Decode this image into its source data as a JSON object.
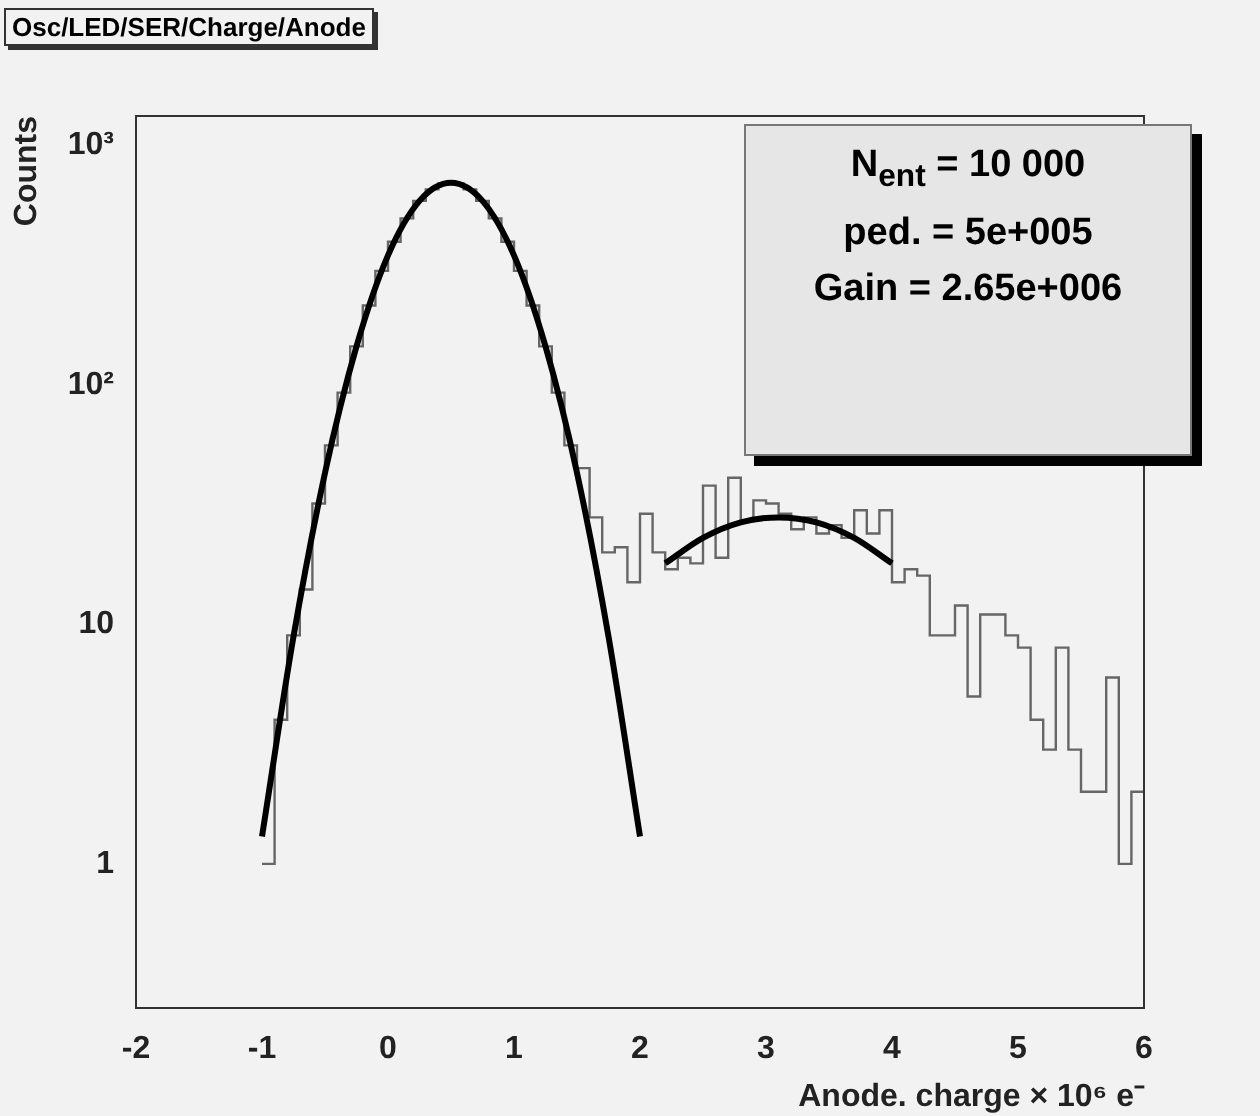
{
  "chart_data": {
    "type": "histogram",
    "title": "Osc/LED/SER/Charge/Anode",
    "xlabel": "Anode. charge × 10⁶ e⁻",
    "ylabel": "Counts",
    "annotations": [
      "N$_{ent}$ = 10 000",
      "ped. = 5e+005",
      "Gain = 2.65e+006"
    ],
    "log": "y",
    "grid": false,
    "legend": false,
    "xlim": [
      -2,
      6
    ],
    "xticks": [
      -2,
      -1,
      0,
      1,
      2,
      3,
      4,
      5,
      6
    ],
    "ylim": [
      0.25,
      1330
    ],
    "yticks": [
      1,
      10,
      {
        "value": 100,
        "label": "10²"
      },
      {
        "value": 1000,
        "label": "10³"
      }
    ],
    "series": [
      {
        "type": "histogram",
        "color": "#666666",
        "bins": [
          -1,
          -0.9,
          -0.8,
          -0.7,
          -0.6,
          -0.5,
          -0.4,
          -0.3,
          -0.2,
          -0.1,
          0,
          0.1,
          0.2,
          0.3,
          0.4,
          0.5,
          0.6,
          0.7,
          0.8,
          0.9,
          1,
          1.1,
          1.2,
          1.3,
          1.4,
          1.5,
          1.6,
          1.7,
          1.8,
          1.9,
          2,
          2.1,
          2.2,
          2.3,
          2.4,
          2.5,
          2.6,
          2.7,
          2.8,
          2.9,
          3,
          3.1,
          3.2,
          3.3,
          3.4,
          3.5,
          3.6,
          3.7,
          3.8,
          3.9,
          4,
          4.1,
          4.2,
          4.3,
          4.4,
          4.5,
          4.6,
          4.7,
          4.8,
          4.9,
          5,
          5.1,
          5.2,
          5.3,
          5.4,
          5.5,
          5.6,
          5.7,
          5.8,
          5.9,
          6
        ],
        "values": [
          1,
          4,
          9,
          14,
          32,
          56,
          93,
          145,
          215,
          300,
          397,
          497,
          588,
          657,
          695,
          695,
          657,
          588,
          497,
          397,
          300,
          215,
          145,
          93,
          56,
          45,
          28,
          20,
          21,
          15,
          29,
          20,
          17,
          19,
          18,
          38,
          19,
          41,
          27,
          33,
          32,
          29,
          25,
          28,
          24,
          26,
          23,
          30,
          24,
          30,
          15,
          17,
          16,
          9,
          9,
          12,
          5,
          11,
          11,
          9,
          8,
          4,
          3,
          8,
          3,
          2,
          2,
          6,
          1,
          2
        ]
      },
      {
        "type": "line",
        "color": "#000000",
        "x": [
          -1,
          -0.75,
          -0.5,
          -0.25,
          0,
          0.25,
          0.5,
          0.75,
          1,
          1.25,
          1.5,
          1.75,
          2
        ],
        "values": [
          1.3,
          8.9,
          43,
          145,
          348,
          588,
          700,
          588,
          348,
          145,
          43,
          8.9,
          1.3
        ]
      },
      {
        "type": "line",
        "color": "#000000",
        "x": [
          2.2,
          2.5,
          2.8,
          3.1,
          3.4,
          3.7,
          4.0
        ],
        "values": [
          18,
          23,
          26.7,
          28,
          26.7,
          23,
          18
        ]
      }
    ]
  }
}
